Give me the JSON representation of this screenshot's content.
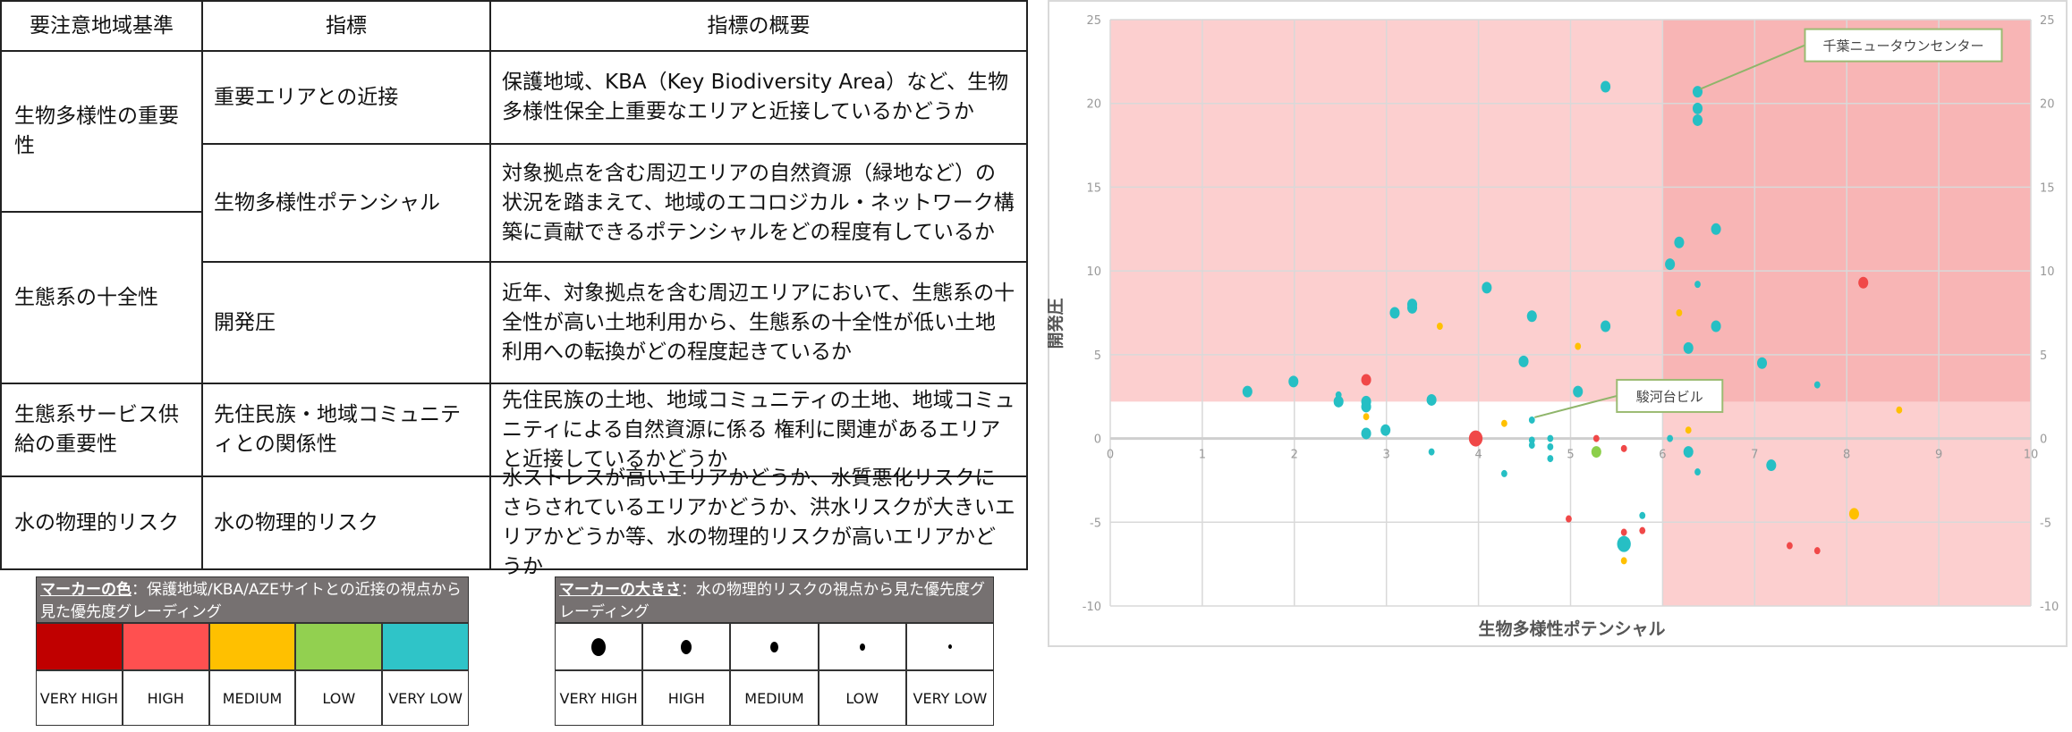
{
  "table": {
    "headers": [
      "要注意地域基準",
      "指標",
      "指標の概要"
    ],
    "criteria": [
      "生物多様性の重要性",
      "生態系の十全性",
      "生態系サービス供給の重要性",
      "水の物理的リスク"
    ],
    "rows": [
      {
        "indicator": "重要エリアとの近接",
        "summary": "保護地域、KBA（Key Biodiversity Area）など、生物多様性保全上重要なエリアと近接しているかどうか"
      },
      {
        "indicator": "生物多様性ポテンシャル",
        "summary": "対象拠点を含む周辺エリアの自然資源（緑地など）の状況を踏まえて、地域のエコロジカル・ネットワーク構築に貢献できるポテンシャルをどの程度有しているか"
      },
      {
        "indicator": "開発圧",
        "summary": "近年、対象拠点を含む周辺エリアにおいて、生態系の十全性が高い土地利用から、生態系の十全性が低い土地利用への転換がどの程度起きているか"
      },
      {
        "indicator": "先住民族・地域コミュニティとの関係性",
        "summary": "先住民族の土地、地域コミュニティの土地、地域コミュニティによる自然資源に係る 権利に関連があるエリアと近接しているかどうか"
      },
      {
        "indicator": "水の物理的リスク",
        "summary": "水ストレスが高いエリアかどうか、水質悪化リスクにさらされているエリアかどうか、洪水リスクが大きいエリアかどうか等、水の物理的リスクが高いエリアかどうか"
      }
    ]
  },
  "legend_color": {
    "title": "マーカーの色",
    "text": "：保護地域/KBA/AZEサイトとの近接の視点から見た優先度グレーディング",
    "items": [
      {
        "label": "VERY HIGH",
        "color": "#C00000"
      },
      {
        "label": "HIGH",
        "color": "#FF5050"
      },
      {
        "label": "MEDIUM",
        "color": "#FFC000"
      },
      {
        "label": "LOW",
        "color": "#92D050"
      },
      {
        "label": "VERY LOW",
        "color": "#2FC4C8"
      }
    ]
  },
  "legend_size": {
    "title": "マーカーの大きさ",
    "text": "：水の物理的リスクの視点から見た優先度グレーディング",
    "items": [
      "VERY HIGH",
      "HIGH",
      "MEDIUM",
      "LOW",
      "VERY LOW"
    ]
  },
  "chart_data": {
    "type": "scatter",
    "xlabel": "生物多様性ポテンシャル",
    "ylabel": "開発圧",
    "xlim": [
      0,
      10
    ],
    "ylim": [
      -10,
      25
    ],
    "xticks": [
      "0",
      "1",
      "2",
      "3",
      "4",
      "5",
      "6",
      "7",
      "8",
      "9",
      "10"
    ],
    "yticks": [
      "-10",
      "-5",
      "0",
      "5",
      "10",
      "15",
      "20",
      "25"
    ],
    "grid": true,
    "highlight_regions": [
      {
        "description": "開発圧 > 2.2",
        "x": [
          0,
          10
        ],
        "y": [
          2.2,
          25
        ],
        "color": "#FCCFCF"
      },
      {
        "description": "生物多様性ポテンシャル > 6",
        "x": [
          6,
          10
        ],
        "y": [
          -10,
          25
        ],
        "color": "#FCCFCF"
      },
      {
        "description": "overlap",
        "x": [
          6,
          10
        ],
        "y": [
          2.2,
          25
        ],
        "color": "#F8B5B5"
      }
    ],
    "color_levels": {
      "VERY HIGH": "#C00000",
      "HIGH": "#F04848",
      "MEDIUM": "#FFC000",
      "LOW": "#8CCF4A",
      "VERY LOW": "#26BFC4"
    },
    "points": [
      {
        "x": 5.38,
        "y": 21.0,
        "c": "VERY LOW",
        "s": "HIGH"
      },
      {
        "x": 6.38,
        "y": 20.7,
        "c": "VERY LOW",
        "s": "HIGH"
      },
      {
        "x": 6.38,
        "y": 19.7,
        "c": "VERY LOW",
        "s": "HIGH"
      },
      {
        "x": 6.38,
        "y": 19.0,
        "c": "VERY LOW",
        "s": "HIGH"
      },
      {
        "x": 6.58,
        "y": 12.5,
        "c": "VERY LOW",
        "s": "HIGH"
      },
      {
        "x": 6.18,
        "y": 11.7,
        "c": "VERY LOW",
        "s": "HIGH"
      },
      {
        "x": 6.08,
        "y": 10.4,
        "c": "VERY LOW",
        "s": "HIGH"
      },
      {
        "x": 6.38,
        "y": 9.2,
        "c": "VERY LOW",
        "s": "LOW"
      },
      {
        "x": 8.18,
        "y": 9.3,
        "c": "HIGH",
        "s": "HIGH"
      },
      {
        "x": 4.09,
        "y": 9.0,
        "c": "VERY LOW",
        "s": "HIGH"
      },
      {
        "x": 3.28,
        "y": 8.0,
        "c": "VERY LOW",
        "s": "HIGH"
      },
      {
        "x": 3.28,
        "y": 7.8,
        "c": "VERY LOW",
        "s": "HIGH"
      },
      {
        "x": 3.09,
        "y": 7.5,
        "c": "VERY LOW",
        "s": "HIGH"
      },
      {
        "x": 4.58,
        "y": 7.3,
        "c": "VERY LOW",
        "s": "HIGH"
      },
      {
        "x": 3.58,
        "y": 6.7,
        "c": "MEDIUM",
        "s": "LOW"
      },
      {
        "x": 5.38,
        "y": 6.7,
        "c": "VERY LOW",
        "s": "HIGH"
      },
      {
        "x": 6.18,
        "y": 7.5,
        "c": "MEDIUM",
        "s": "LOW"
      },
      {
        "x": 6.58,
        "y": 6.7,
        "c": "VERY LOW",
        "s": "HIGH"
      },
      {
        "x": 5.08,
        "y": 5.5,
        "c": "MEDIUM",
        "s": "LOW"
      },
      {
        "x": 6.28,
        "y": 5.4,
        "c": "VERY LOW",
        "s": "HIGH"
      },
      {
        "x": 4.49,
        "y": 4.6,
        "c": "VERY LOW",
        "s": "HIGH"
      },
      {
        "x": 7.08,
        "y": 4.5,
        "c": "VERY LOW",
        "s": "HIGH"
      },
      {
        "x": 1.49,
        "y": 2.8,
        "c": "VERY LOW",
        "s": "HIGH"
      },
      {
        "x": 1.99,
        "y": 3.4,
        "c": "VERY LOW",
        "s": "HIGH"
      },
      {
        "x": 2.78,
        "y": 3.5,
        "c": "HIGH",
        "s": "HIGH"
      },
      {
        "x": 2.48,
        "y": 2.6,
        "c": "VERY LOW",
        "s": "LOW"
      },
      {
        "x": 2.48,
        "y": 2.2,
        "c": "VERY LOW",
        "s": "HIGH"
      },
      {
        "x": 2.78,
        "y": 2.2,
        "c": "VERY LOW",
        "s": "HIGH"
      },
      {
        "x": 2.78,
        "y": 1.9,
        "c": "VERY LOW",
        "s": "HIGH"
      },
      {
        "x": 2.78,
        "y": 1.3,
        "c": "MEDIUM",
        "s": "LOW"
      },
      {
        "x": 2.78,
        "y": 0.3,
        "c": "VERY LOW",
        "s": "HIGH"
      },
      {
        "x": 2.99,
        "y": 0.5,
        "c": "VERY LOW",
        "s": "HIGH"
      },
      {
        "x": 3.49,
        "y": 2.3,
        "c": "VERY LOW",
        "s": "HIGH"
      },
      {
        "x": 3.49,
        "y": -0.8,
        "c": "VERY LOW",
        "s": "LOW"
      },
      {
        "x": 3.97,
        "y": 0.0,
        "c": "HIGH",
        "s": "VERY HIGH"
      },
      {
        "x": 4.28,
        "y": 0.9,
        "c": "MEDIUM",
        "s": "LOW"
      },
      {
        "x": 4.58,
        "y": 1.1,
        "c": "VERY LOW",
        "s": "LOW"
      },
      {
        "x": 4.58,
        "y": -0.1,
        "c": "VERY LOW",
        "s": "LOW"
      },
      {
        "x": 4.58,
        "y": -0.4,
        "c": "VERY LOW",
        "s": "LOW"
      },
      {
        "x": 4.78,
        "y": 0.0,
        "c": "VERY LOW",
        "s": "LOW"
      },
      {
        "x": 4.78,
        "y": -0.5,
        "c": "VERY LOW",
        "s": "LOW"
      },
      {
        "x": 4.78,
        "y": -1.2,
        "c": "VERY LOW",
        "s": "LOW"
      },
      {
        "x": 4.28,
        "y": -2.1,
        "c": "VERY LOW",
        "s": "LOW"
      },
      {
        "x": 5.08,
        "y": 2.8,
        "c": "VERY LOW",
        "s": "HIGH"
      },
      {
        "x": 5.28,
        "y": 0.0,
        "c": "HIGH",
        "s": "LOW"
      },
      {
        "x": 5.28,
        "y": -0.8,
        "c": "LOW",
        "s": "HIGH"
      },
      {
        "x": 5.58,
        "y": -0.6,
        "c": "HIGH",
        "s": "LOW"
      },
      {
        "x": 6.08,
        "y": 0.0,
        "c": "VERY LOW",
        "s": "LOW"
      },
      {
        "x": 6.28,
        "y": 0.5,
        "c": "MEDIUM",
        "s": "LOW"
      },
      {
        "x": 6.28,
        "y": -0.8,
        "c": "VERY LOW",
        "s": "HIGH"
      },
      {
        "x": 6.38,
        "y": -2.0,
        "c": "VERY LOW",
        "s": "LOW"
      },
      {
        "x": 7.18,
        "y": -1.6,
        "c": "VERY LOW",
        "s": "HIGH"
      },
      {
        "x": 7.68,
        "y": 3.2,
        "c": "VERY LOW",
        "s": "LOW"
      },
      {
        "x": 8.57,
        "y": 1.7,
        "c": "MEDIUM",
        "s": "LOW"
      },
      {
        "x": 8.08,
        "y": -4.5,
        "c": "MEDIUM",
        "s": "HIGH"
      },
      {
        "x": 4.98,
        "y": -4.8,
        "c": "HIGH",
        "s": "LOW"
      },
      {
        "x": 5.78,
        "y": -4.6,
        "c": "VERY LOW",
        "s": "LOW"
      },
      {
        "x": 5.58,
        "y": -5.6,
        "c": "HIGH",
        "s": "LOW"
      },
      {
        "x": 5.78,
        "y": -5.5,
        "c": "HIGH",
        "s": "LOW"
      },
      {
        "x": 5.58,
        "y": -6.3,
        "c": "VERY LOW",
        "s": "VERY HIGH"
      },
      {
        "x": 5.58,
        "y": -7.3,
        "c": "MEDIUM",
        "s": "LOW"
      },
      {
        "x": 7.38,
        "y": -6.4,
        "c": "HIGH",
        "s": "LOW"
      },
      {
        "x": 7.68,
        "y": -6.7,
        "c": "HIGH",
        "s": "LOW"
      }
    ],
    "annotations": [
      {
        "label": "千葉ニュータウンセンター",
        "x": 6.38,
        "y": 20.7
      },
      {
        "label": "駿河台ビル",
        "x": 4.58,
        "y": 1.1
      }
    ]
  }
}
